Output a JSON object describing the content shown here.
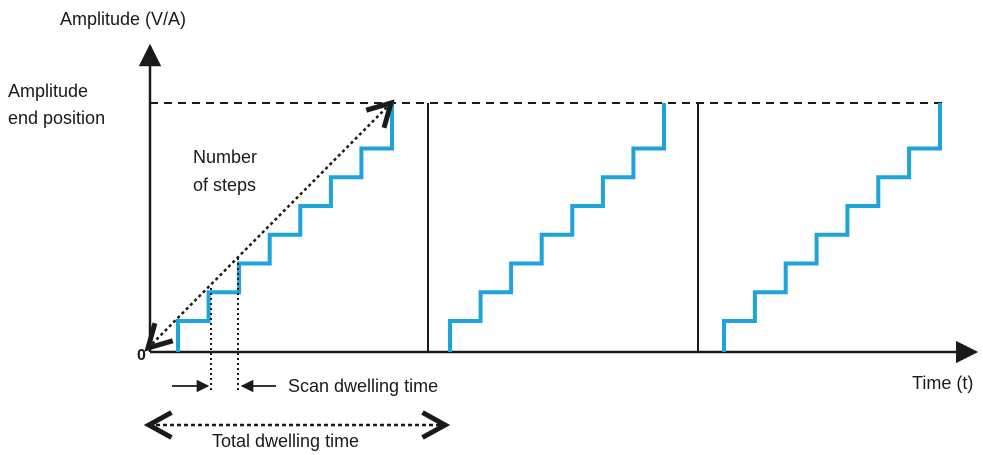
{
  "labels": {
    "y_axis": "Amplitude (V/A)",
    "x_axis": "Time (t)",
    "origin": "0",
    "amp_end_line1": "Amplitude",
    "amp_end_line2": "end position",
    "steps_line1": "Number",
    "steps_line2": "of steps",
    "scan_dwell": "Scan dwelling time",
    "total_dwell": "Total dwelling time"
  },
  "colors": {
    "staircase": "#1fa3dc",
    "axis": "#1a1a1a"
  },
  "diagram": {
    "periods": 3,
    "steps_per_period": 8
  }
}
